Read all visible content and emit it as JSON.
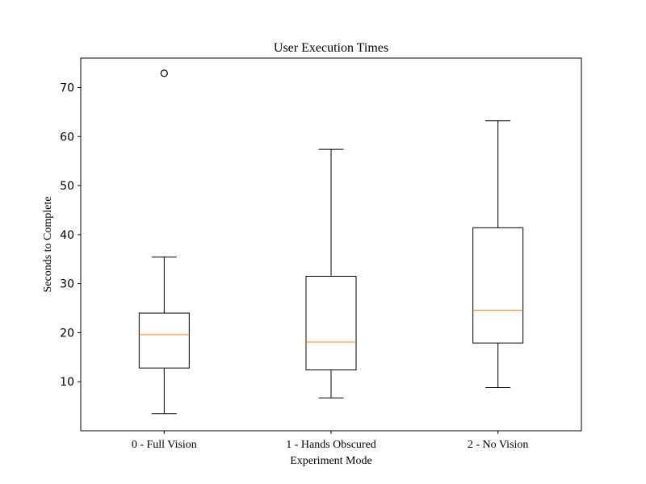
{
  "chart_data": {
    "type": "box",
    "title": "User Execution Times",
    "xlabel": "Experiment Mode",
    "ylabel": "Seconds to Complete",
    "ylim": [
      0,
      76
    ],
    "yticks": [
      10,
      20,
      30,
      40,
      50,
      60,
      70
    ],
    "grid": false,
    "box_color": "#000000",
    "median_color": "#ff7f0e",
    "categories": [
      "0 - Full Vision",
      "1 - Hands Obscured",
      "2 - No Vision"
    ],
    "series": [
      {
        "whisker_low": 3.5,
        "q1": 12.8,
        "median": 19.6,
        "q3": 24.0,
        "whisker_high": 35.4,
        "outliers": [
          72.9
        ]
      },
      {
        "whisker_low": 6.7,
        "q1": 12.4,
        "median": 18.1,
        "q3": 31.5,
        "whisker_high": 57.4,
        "outliers": []
      },
      {
        "whisker_low": 8.8,
        "q1": 17.9,
        "median": 24.6,
        "q3": 41.4,
        "whisker_high": 63.2,
        "outliers": []
      }
    ]
  }
}
